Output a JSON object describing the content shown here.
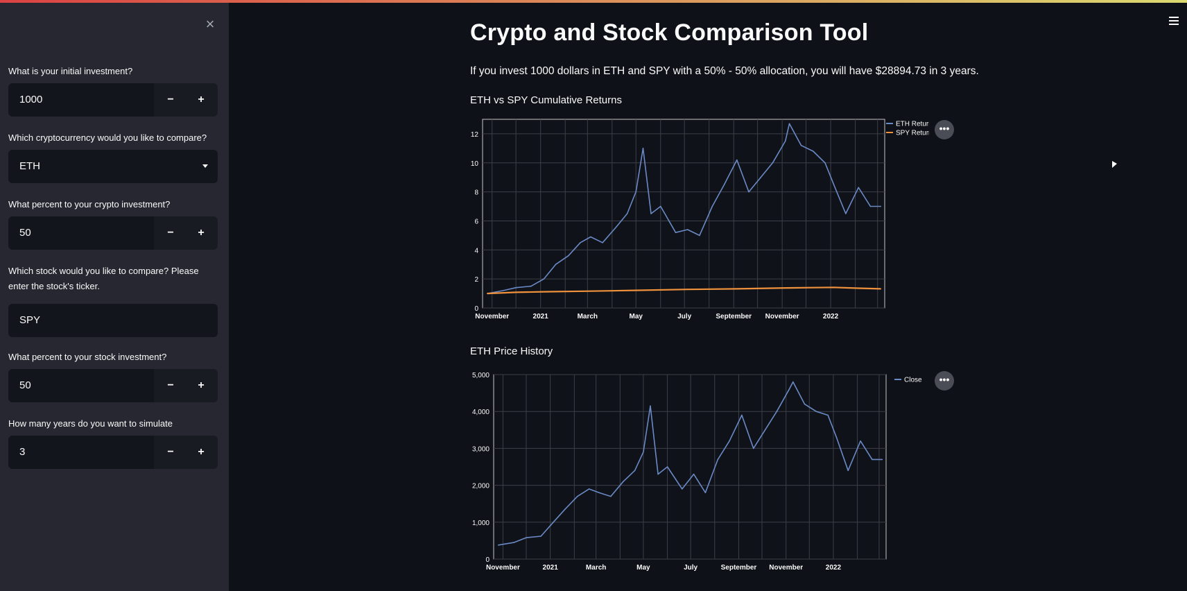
{
  "sidebar": {
    "close_label": "×",
    "fields": [
      {
        "label": "What is your initial investment?",
        "type": "number",
        "value": "1000"
      },
      {
        "label": "Which cryptocurrency would you like to compare?",
        "type": "select",
        "value": "ETH"
      },
      {
        "label": "What percent to your crypto investment?",
        "type": "number",
        "value": "50"
      },
      {
        "label": "Which stock would you like to compare? Please enter the stock's ticker.",
        "type": "text",
        "value": "SPY"
      },
      {
        "label": "What percent to your stock investment?",
        "type": "number",
        "value": "50"
      },
      {
        "label": "How many years do you want to simulate",
        "type": "number",
        "value": "3"
      }
    ],
    "minus_label": "−",
    "plus_label": "+"
  },
  "main": {
    "title": "Crypto and Stock Comparison Tool",
    "summary": "If you invest 1000 dollars in ETH and SPY with a 50% - 50% allocation, you will have $28894.73 in 3 years.",
    "menu_dots": "•••"
  },
  "chart_data": [
    {
      "type": "line",
      "title": "ETH vs SPY Cumulative Returns",
      "x_ticks": [
        "November",
        "2021",
        "March",
        "May",
        "July",
        "September",
        "November",
        "2022"
      ],
      "y_ticks": [
        "0",
        "2",
        "4",
        "6",
        "8",
        "10",
        "12"
      ],
      "ylim": [
        0,
        13
      ],
      "grid": true,
      "legend": "top-right",
      "series": [
        {
          "name": "ETH Returns",
          "color": "#6a8ac6",
          "x": [
            "2020-10-26",
            "2020-11-15",
            "2020-12-01",
            "2020-12-20",
            "2021-01-05",
            "2021-01-20",
            "2021-02-05",
            "2021-02-20",
            "2021-03-05",
            "2021-03-20",
            "2021-04-05",
            "2021-04-20",
            "2021-05-01",
            "2021-05-10",
            "2021-05-20",
            "2021-06-01",
            "2021-06-20",
            "2021-07-05",
            "2021-07-20",
            "2021-08-05",
            "2021-08-20",
            "2021-09-05",
            "2021-09-20",
            "2021-10-05",
            "2021-10-20",
            "2021-11-05",
            "2021-11-10",
            "2021-11-25",
            "2021-12-10",
            "2021-12-25",
            "2022-01-05",
            "2022-01-20",
            "2022-02-05",
            "2022-02-20",
            "2022-03-05"
          ],
          "values": [
            1.0,
            1.2,
            1.4,
            1.5,
            2.0,
            3.0,
            3.6,
            4.5,
            4.9,
            4.5,
            5.5,
            6.5,
            8.0,
            11.0,
            6.5,
            7.0,
            5.2,
            5.4,
            5.0,
            7.0,
            8.5,
            10.2,
            8.0,
            9.0,
            10.0,
            11.5,
            12.7,
            11.2,
            10.8,
            10.0,
            8.5,
            6.5,
            8.3,
            7.0,
            7.0
          ]
        },
        {
          "name": "SPY Returns",
          "color": "#f0923c",
          "x": [
            "2020-10-26",
            "2020-12-01",
            "2021-01-05",
            "2021-03-05",
            "2021-05-05",
            "2021-07-05",
            "2021-09-05",
            "2021-11-05",
            "2021-12-05",
            "2022-01-05",
            "2022-02-05",
            "2022-03-05"
          ],
          "values": [
            1.0,
            1.08,
            1.12,
            1.16,
            1.22,
            1.28,
            1.32,
            1.38,
            1.4,
            1.42,
            1.36,
            1.32
          ]
        }
      ]
    },
    {
      "type": "line",
      "title": "ETH Price History",
      "x_ticks": [
        "November",
        "2021",
        "March",
        "May",
        "July",
        "September",
        "November",
        "2022"
      ],
      "y_ticks": [
        "0",
        "1,000",
        "2,000",
        "3,000",
        "4,000",
        "5,000"
      ],
      "ylim": [
        0,
        5000
      ],
      "grid": true,
      "legend": "top-right",
      "series": [
        {
          "name": "Close",
          "color": "#6a8ac6",
          "x": [
            "2020-10-26",
            "2020-11-15",
            "2020-12-01",
            "2020-12-20",
            "2021-01-05",
            "2021-01-20",
            "2021-02-05",
            "2021-02-20",
            "2021-03-05",
            "2021-03-20",
            "2021-04-05",
            "2021-04-20",
            "2021-05-01",
            "2021-05-10",
            "2021-05-20",
            "2021-06-01",
            "2021-06-20",
            "2021-07-05",
            "2021-07-20",
            "2021-08-05",
            "2021-08-20",
            "2021-09-05",
            "2021-09-20",
            "2021-10-05",
            "2021-10-20",
            "2021-11-05",
            "2021-11-10",
            "2021-11-25",
            "2021-12-10",
            "2021-12-25",
            "2022-01-05",
            "2022-01-20",
            "2022-02-05",
            "2022-02-20",
            "2022-03-05"
          ],
          "values": [
            380,
            450,
            580,
            620,
            1000,
            1350,
            1700,
            1900,
            1800,
            1700,
            2100,
            2400,
            2900,
            4150,
            2300,
            2500,
            1900,
            2300,
            1800,
            2700,
            3200,
            3900,
            3000,
            3500,
            4000,
            4600,
            4800,
            4200,
            4000,
            3900,
            3300,
            2400,
            3200,
            2700,
            2700
          ]
        }
      ]
    }
  ]
}
